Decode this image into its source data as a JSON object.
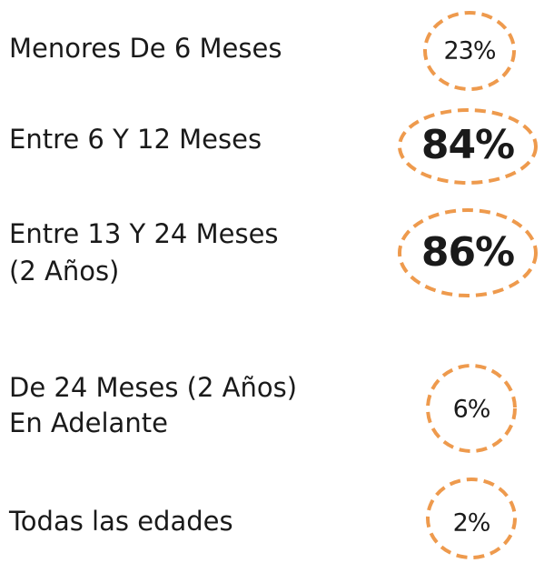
{
  "items": [
    {
      "label": [
        "Menores De 6 Meses"
      ],
      "value": "23%"
    },
    {
      "label": [
        "Entre 6 Y 12 Meses"
      ],
      "value": "84%"
    },
    {
      "label": [
        "Entre 13 Y 24 Meses",
        "(2 Años)"
      ],
      "value": "86%"
    },
    {
      "label": [
        "De 24 Meses (2 Años)",
        "En Adelante"
      ],
      "value": "6%"
    },
    {
      "label": [
        "Todas las edades"
      ],
      "value": "2%"
    }
  ]
}
